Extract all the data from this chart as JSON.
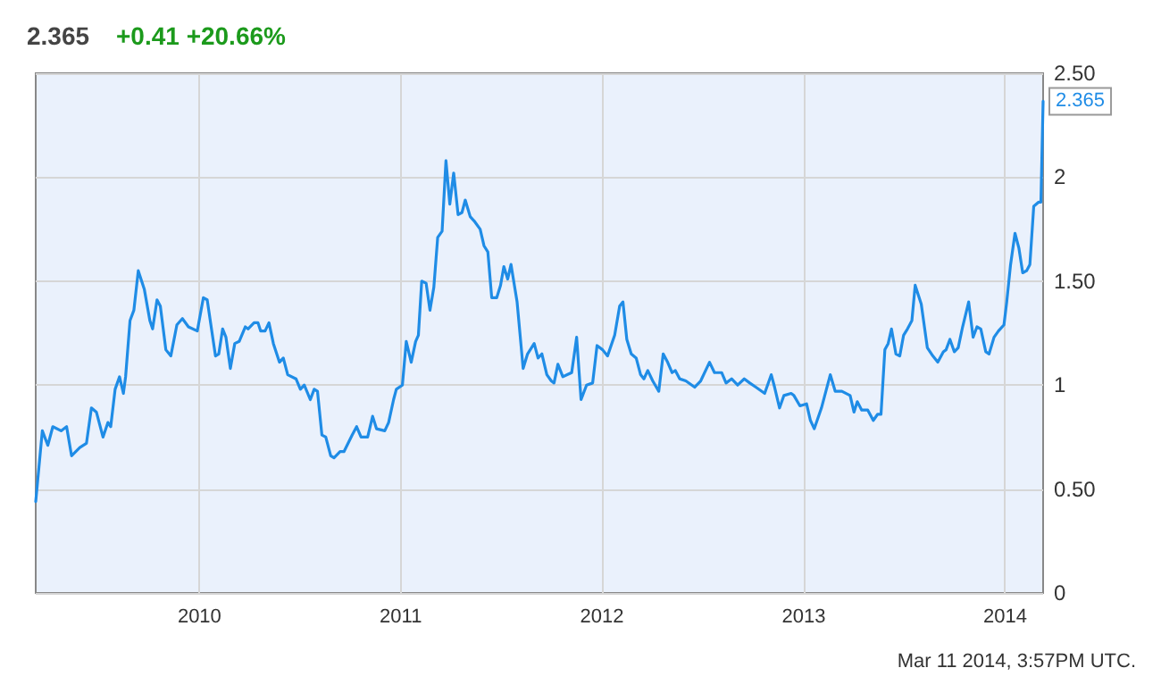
{
  "chart_data": {
    "type": "line",
    "title": "2.365",
    "subtitle": "+0.41 +20.66%",
    "x": [
      "2009-03-10",
      "2009-03-22",
      "2009-04-01",
      "2009-04-10",
      "2009-04-25",
      "2009-05-05",
      "2009-05-14",
      "2009-05-29",
      "2009-06-10",
      "2009-06-19",
      "2009-06-28",
      "2009-07-10",
      "2009-07-19",
      "2009-07-24",
      "2009-08-01",
      "2009-08-09",
      "2009-08-16",
      "2009-08-20",
      "2009-08-28",
      "2009-09-04",
      "2009-09-12",
      "2009-09-23",
      "2009-10-03",
      "2009-10-08",
      "2009-10-16",
      "2009-10-22",
      "2009-11-01",
      "2009-11-10",
      "2009-11-21",
      "2009-12-01",
      "2009-12-12",
      "2009-12-28",
      "2010-01-08",
      "2010-01-15",
      "2010-01-30",
      "2010-02-05",
      "2010-02-12",
      "2010-02-18",
      "2010-02-26",
      "2010-03-06",
      "2010-03-14",
      "2010-03-25",
      "2010-03-30",
      "2010-04-10",
      "2010-04-17",
      "2010-04-22",
      "2010-04-30",
      "2010-05-07",
      "2010-05-15",
      "2010-05-26",
      "2010-06-02",
      "2010-06-10",
      "2010-06-25",
      "2010-07-03",
      "2010-07-10",
      "2010-07-21",
      "2010-07-28",
      "2010-08-03",
      "2010-08-11",
      "2010-08-18",
      "2010-08-27",
      "2010-09-02",
      "2010-09-13",
      "2010-09-20",
      "2010-10-05",
      "2010-10-13",
      "2010-10-21",
      "2010-11-02",
      "2010-11-11",
      "2010-11-18",
      "2010-12-03",
      "2010-12-10",
      "2010-12-19",
      "2010-12-24",
      "2011-01-04",
      "2011-01-11",
      "2011-01-20",
      "2011-01-28",
      "2011-02-02",
      "2011-02-08",
      "2011-02-16",
      "2011-02-23",
      "2011-03-02",
      "2011-03-09",
      "2011-03-17",
      "2011-03-24",
      "2011-03-31",
      "2011-04-07",
      "2011-04-15",
      "2011-04-22",
      "2011-04-28",
      "2011-05-07",
      "2011-05-14",
      "2011-05-25",
      "2011-06-01",
      "2011-06-08",
      "2011-06-15",
      "2011-06-24",
      "2011-07-01",
      "2011-07-07",
      "2011-07-14",
      "2011-07-20",
      "2011-07-31",
      "2011-08-11",
      "2011-08-19",
      "2011-08-31",
      "2011-09-07",
      "2011-09-14",
      "2011-09-23",
      "2011-10-01",
      "2011-10-06",
      "2011-10-13",
      "2011-10-22",
      "2011-10-30",
      "2011-11-07",
      "2011-11-16",
      "2011-11-24",
      "2011-12-04",
      "2011-12-15",
      "2011-12-23",
      "2012-01-02",
      "2012-01-11",
      "2012-01-24",
      "2012-02-02",
      "2012-02-08",
      "2012-02-15",
      "2012-02-23",
      "2012-03-03",
      "2012-03-11",
      "2012-03-17",
      "2012-03-24",
      "2012-04-02",
      "2012-04-13",
      "2012-04-21",
      "2012-04-29",
      "2012-05-07",
      "2012-05-13",
      "2012-05-21",
      "2012-06-01",
      "2012-06-17",
      "2012-06-28",
      "2012-07-14",
      "2012-07-23",
      "2012-08-05",
      "2012-08-13",
      "2012-08-23",
      "2012-09-03",
      "2012-09-15",
      "2012-09-25",
      "2012-10-06",
      "2012-10-22",
      "2012-11-03",
      "2012-11-09",
      "2012-11-18",
      "2012-11-26",
      "2012-12-09",
      "2012-12-14",
      "2012-12-25",
      "2013-01-06",
      "2013-01-13",
      "2013-01-20",
      "2013-02-02",
      "2013-02-18",
      "2013-02-27",
      "2013-03-11",
      "2013-03-26",
      "2013-04-02",
      "2013-04-08",
      "2013-04-16",
      "2013-04-27",
      "2013-05-07",
      "2013-05-15",
      "2013-05-21",
      "2013-05-28",
      "2013-06-03",
      "2013-06-09",
      "2013-06-17",
      "2013-06-24",
      "2013-07-01",
      "2013-07-08",
      "2013-07-16",
      "2013-07-22",
      "2013-08-02",
      "2013-08-13",
      "2013-08-23",
      "2013-09-01",
      "2013-09-11",
      "2013-09-16",
      "2013-09-23",
      "2013-10-01",
      "2013-10-08",
      "2013-10-16",
      "2013-10-27",
      "2013-11-04",
      "2013-11-11",
      "2013-11-18",
      "2013-11-27",
      "2013-12-03",
      "2013-12-12",
      "2013-12-20",
      "2013-12-30",
      "2014-01-04",
      "2014-01-11",
      "2014-01-19",
      "2014-01-26",
      "2014-02-02",
      "2014-02-09",
      "2014-02-15",
      "2014-02-22",
      "2014-03-03",
      "2014-03-07",
      "2014-03-11"
    ],
    "series": [
      {
        "color": "#1f8ce6",
        "values": [
          0.44,
          0.78,
          0.71,
          0.8,
          0.78,
          0.8,
          0.66,
          0.7,
          0.72,
          0.89,
          0.87,
          0.75,
          0.82,
          0.8,
          0.98,
          1.04,
          0.96,
          1.04,
          1.31,
          1.36,
          1.55,
          1.46,
          1.31,
          1.27,
          1.41,
          1.38,
          1.17,
          1.14,
          1.29,
          1.32,
          1.28,
          1.26,
          1.42,
          1.41,
          1.14,
          1.15,
          1.27,
          1.23,
          1.08,
          1.2,
          1.21,
          1.28,
          1.27,
          1.3,
          1.3,
          1.26,
          1.26,
          1.3,
          1.2,
          1.11,
          1.13,
          1.05,
          1.03,
          0.98,
          1.0,
          0.93,
          0.98,
          0.97,
          0.76,
          0.75,
          0.66,
          0.65,
          0.68,
          0.68,
          0.76,
          0.8,
          0.75,
          0.75,
          0.85,
          0.79,
          0.78,
          0.82,
          0.93,
          0.98,
          1.0,
          1.21,
          1.11,
          1.21,
          1.24,
          1.5,
          1.49,
          1.36,
          1.47,
          1.71,
          1.74,
          2.08,
          1.87,
          2.02,
          1.82,
          1.83,
          1.89,
          1.81,
          1.79,
          1.75,
          1.67,
          1.64,
          1.42,
          1.42,
          1.48,
          1.57,
          1.51,
          1.58,
          1.4,
          1.08,
          1.15,
          1.2,
          1.13,
          1.15,
          1.05,
          1.02,
          1.01,
          1.1,
          1.04,
          1.05,
          1.06,
          1.23,
          0.93,
          1.0,
          1.01,
          1.19,
          1.17,
          1.14,
          1.24,
          1.38,
          1.4,
          1.22,
          1.15,
          1.13,
          1.05,
          1.03,
          1.07,
          1.02,
          0.97,
          1.15,
          1.11,
          1.06,
          1.07,
          1.03,
          1.02,
          0.99,
          1.02,
          1.11,
          1.06,
          1.06,
          1.01,
          1.03,
          1.0,
          1.03,
          1.01,
          0.99,
          0.96,
          1.05,
          0.99,
          0.89,
          0.95,
          0.96,
          0.95,
          0.9,
          0.91,
          0.83,
          0.79,
          0.89,
          1.05,
          0.97,
          0.97,
          0.95,
          0.87,
          0.92,
          0.88,
          0.88,
          0.83,
          0.86,
          0.86,
          1.17,
          1.2,
          1.27,
          1.15,
          1.14,
          1.24,
          1.27,
          1.31,
          1.48,
          1.39,
          1.18,
          1.14,
          1.11,
          1.16,
          1.17,
          1.22,
          1.16,
          1.18,
          1.28,
          1.4,
          1.23,
          1.28,
          1.27,
          1.16,
          1.15,
          1.23,
          1.26,
          1.29,
          1.4,
          1.58,
          1.73,
          1.66,
          1.54,
          1.55,
          1.58,
          1.86,
          1.88,
          1.88,
          2.365
        ]
      }
    ],
    "xlim": [
      "2009-03-10",
      "2014-03-11"
    ],
    "xticks": [
      "2010",
      "2011",
      "2012",
      "2013",
      "2014"
    ],
    "ylim": [
      0,
      2.5
    ],
    "yticks": [
      0,
      {
        "value": 0.5,
        "label": "0.50"
      },
      1,
      {
        "value": 1.5,
        "label": "1.50"
      },
      2,
      {
        "value": 2.5,
        "label": "2.50"
      }
    ],
    "grid": true,
    "marker": "none",
    "line_style": "solid",
    "annotations": [
      {
        "text": "2.365",
        "x": "2014-03-11",
        "y": 2.365
      },
      "Mar 11 2014, 3:57PM UTC."
    ]
  }
}
